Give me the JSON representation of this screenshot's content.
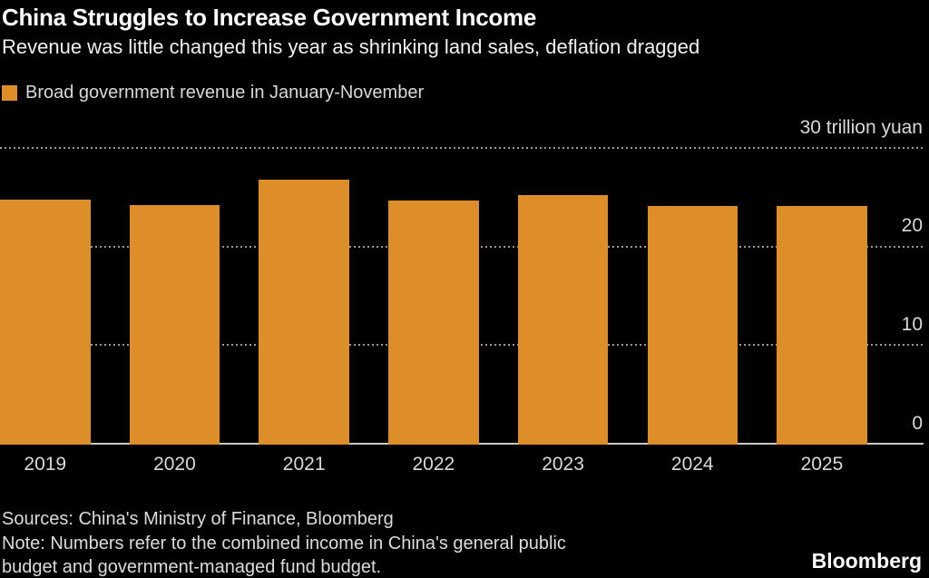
{
  "header": {
    "title": "China Struggles to Increase Government Income",
    "subtitle": "Revenue was little changed this year as shrinking land sales, deflation dragged"
  },
  "legend": {
    "label": "Broad government revenue in January-November",
    "swatch_color": "#dd8e28"
  },
  "chart_data": {
    "type": "bar",
    "title": "China Struggles to Increase Government Income",
    "subtitle": "Revenue was little changed this year as shrinking land sales, deflation dragged",
    "legend_entries": [
      "Broad government revenue in January-November"
    ],
    "legend_position": "top-left",
    "categories": [
      "2019",
      "2020",
      "2021",
      "2022",
      "2023",
      "2024",
      "2025"
    ],
    "values": [
      24.7,
      24.2,
      26.7,
      24.6,
      25.2,
      24.1,
      24.1
    ],
    "xlabel": "",
    "ylabel": "trillion yuan",
    "ylim": [
      0,
      30
    ],
    "y_ticks": [
      {
        "value": 30,
        "label": "30 trillion yuan"
      },
      {
        "value": 20,
        "label": "20"
      },
      {
        "value": 10,
        "label": "10"
      },
      {
        "value": 0,
        "label": "0"
      }
    ],
    "grid": "horizontal-dotted",
    "bar_color": "#dd8e28",
    "background_color": "#000000"
  },
  "footer": {
    "sources": "Sources: China's Ministry of Finance, Bloomberg",
    "note_lines": [
      "Note: Numbers refer to the combined income in China's general public",
      "budget and government-managed fund budget."
    ],
    "brand": "Bloomberg"
  }
}
